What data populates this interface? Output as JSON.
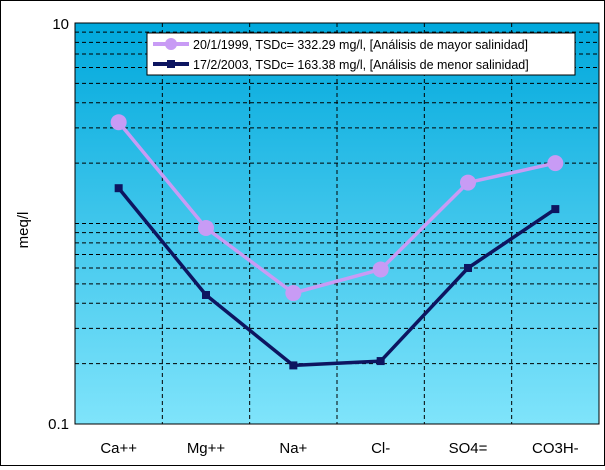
{
  "chart_data": {
    "type": "line",
    "ylabel": "meq/l",
    "yscale": "log",
    "ylim": [
      0.1,
      10
    ],
    "y_tick_labels": [
      "10",
      "0.1"
    ],
    "categories": [
      "Ca++",
      "Mg++",
      "Na+",
      "Cl-",
      "SO4=",
      "CO3H-"
    ],
    "series": [
      {
        "name": "20/1/1999, TSDc= 332.29 mg/l, [Análisis de mayor salinidad]",
        "color": "#c89bf5",
        "marker": "circle",
        "values": [
          3.2,
          0.95,
          0.45,
          0.59,
          1.6,
          2.0
        ]
      },
      {
        "name": "17/2/2003, TSDc= 163.38 mg/l, [Análisis de menor salinidad]",
        "color": "#0d1560",
        "marker": "square",
        "values": [
          1.5,
          0.44,
          0.196,
          0.206,
          0.6,
          1.18
        ]
      }
    ],
    "grid": true,
    "legend": "top-right",
    "background_gradient": [
      "#00a8dc",
      "#7fe4fb"
    ]
  }
}
